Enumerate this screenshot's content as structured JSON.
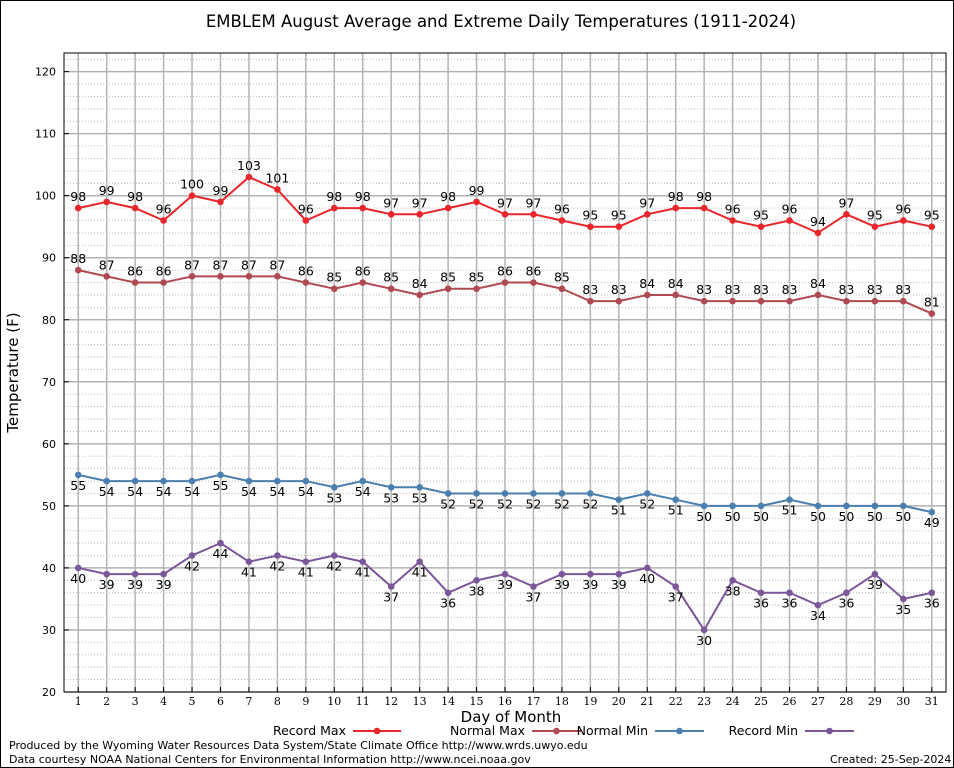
{
  "footer": {
    "credit_line1": "Produced by the Wyoming Water Resources Data System/State Climate Office http://www.wrds.uwyo.edu",
    "credit_line2": "Data courtesy NOAA National Centers for Environmental Information http://www.ncei.noaa.gov",
    "created": "Created:  25-Sep-2024"
  },
  "chart_data": {
    "type": "line",
    "title": "EMBLEM August Average and Extreme Daily Temperatures (1911-2024)",
    "xlabel": "Day of Month",
    "ylabel": "Temperature (F)",
    "ylim": [
      20,
      123
    ],
    "yticks": [
      20,
      30,
      40,
      50,
      60,
      70,
      80,
      90,
      100,
      110,
      120
    ],
    "grid": true,
    "legend_position": "bottom",
    "x": [
      1,
      2,
      3,
      4,
      5,
      6,
      7,
      8,
      9,
      10,
      11,
      12,
      13,
      14,
      15,
      16,
      17,
      18,
      19,
      20,
      21,
      22,
      23,
      24,
      25,
      26,
      27,
      28,
      29,
      30,
      31
    ],
    "series": [
      {
        "name": "Record Max",
        "color": "#e8262b",
        "label_position": "above",
        "values": [
          98,
          99,
          98,
          96,
          100,
          99,
          103,
          101,
          96,
          98,
          98,
          97,
          97,
          98,
          99,
          97,
          97,
          96,
          95,
          95,
          97,
          98,
          98,
          96,
          95,
          96,
          94,
          97,
          95,
          96,
          95
        ]
      },
      {
        "name": "Normal Max",
        "color": "#b04a52",
        "label_position": "above",
        "values": [
          88,
          87,
          86,
          86,
          87,
          87,
          87,
          87,
          86,
          85,
          86,
          85,
          84,
          85,
          85,
          86,
          86,
          85,
          83,
          83,
          84,
          84,
          83,
          83,
          83,
          83,
          84,
          83,
          83,
          83,
          81
        ]
      },
      {
        "name": "Normal Min",
        "color": "#4a7fb0",
        "label_position": "below",
        "values": [
          55,
          54,
          54,
          54,
          54,
          55,
          54,
          54,
          54,
          53,
          54,
          53,
          53,
          52,
          52,
          52,
          52,
          52,
          52,
          51,
          52,
          51,
          50,
          50,
          50,
          51,
          50,
          50,
          50,
          50,
          49
        ]
      },
      {
        "name": "Record Min",
        "color": "#7b579a",
        "label_position": "below",
        "values": [
          40,
          39,
          39,
          39,
          42,
          44,
          41,
          42,
          41,
          42,
          41,
          37,
          41,
          36,
          38,
          39,
          37,
          39,
          39,
          39,
          40,
          37,
          30,
          38,
          36,
          36,
          34,
          36,
          39,
          35,
          36
        ]
      }
    ]
  }
}
